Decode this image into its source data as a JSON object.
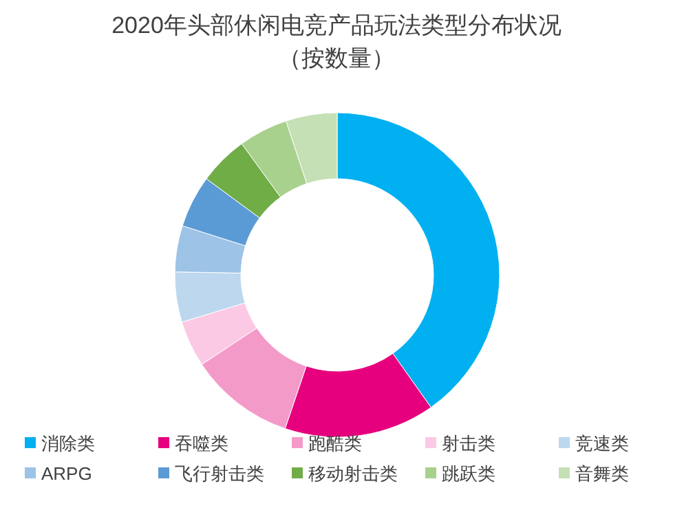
{
  "chart_data": {
    "type": "donut",
    "title": "2020年头部休闲电竞产品玩法类型分布状况",
    "subtitle": "（按数量）",
    "categories": [
      "消除类",
      "吞噬类",
      "跑酷类",
      "射击类",
      "竞速类",
      "ARPG",
      "飞行射击类",
      "移动射击类",
      "跳跃类",
      "音舞类"
    ],
    "values": [
      40.2,
      15,
      10.5,
      4.6,
      5,
      4.6,
      5.2,
      4.9,
      4.9,
      5.1
    ],
    "colors": [
      "#00b0f0",
      "#e6007e",
      "#f49ac9",
      "#fcc9e4",
      "#bdd7ee",
      "#9dc3e6",
      "#5b9bd5",
      "#70ad47",
      "#a9d18e",
      "#c5e0b4"
    ],
    "legend": "bottom"
  }
}
